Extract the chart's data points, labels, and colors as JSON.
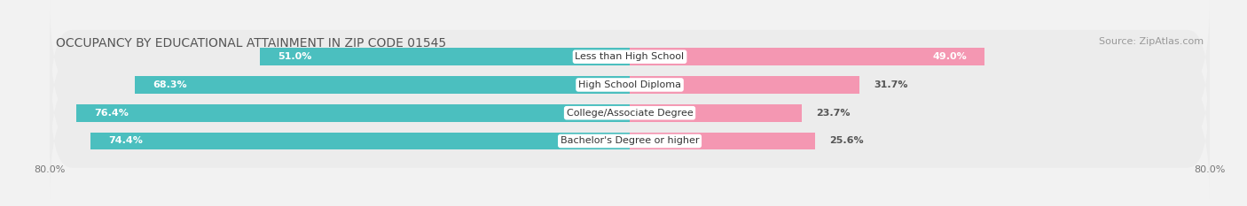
{
  "title": "OCCUPANCY BY EDUCATIONAL ATTAINMENT IN ZIP CODE 01545",
  "source": "Source: ZipAtlas.com",
  "categories": [
    "Less than High School",
    "High School Diploma",
    "College/Associate Degree",
    "Bachelor's Degree or higher"
  ],
  "owner_values": [
    51.0,
    68.3,
    76.4,
    74.4
  ],
  "renter_values": [
    49.0,
    31.7,
    23.7,
    25.6
  ],
  "owner_color": "#4BBFBF",
  "renter_color": "#F497B2",
  "background_color": "#f2f2f2",
  "bar_bg_color": "#e4e4e4",
  "bar_bg_color2": "#ececec",
  "total_width": 100.0,
  "xlim_left": 0.0,
  "xlim_right": 100.0,
  "left_tick_label": "80.0%",
  "right_tick_label": "80.0%",
  "title_fontsize": 10,
  "source_fontsize": 8,
  "value_fontsize": 8,
  "cat_fontsize": 8,
  "tick_fontsize": 8,
  "legend_fontsize": 8,
  "bar_height": 0.62
}
